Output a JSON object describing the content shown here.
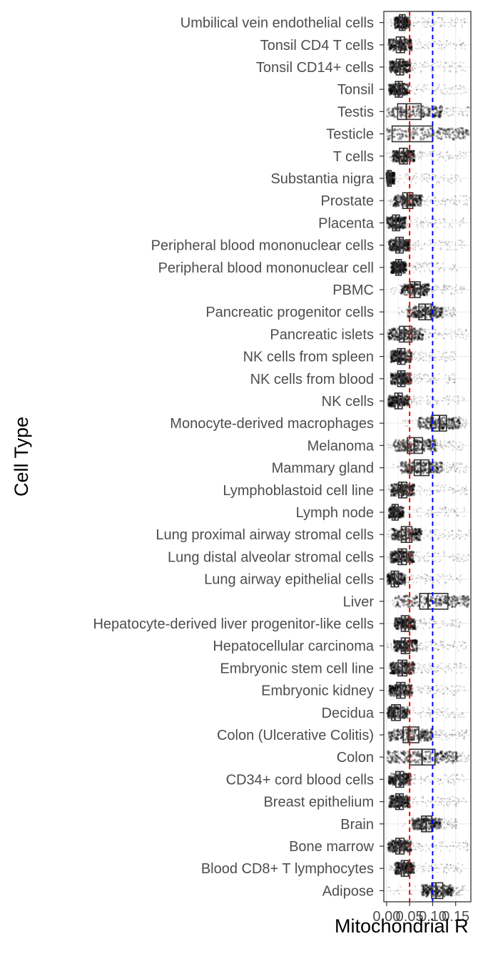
{
  "chart_data": {
    "type": "boxplot",
    "title": "",
    "xlabel": "Mitochondrial R",
    "ylabel": "Cell Type",
    "xlim": [
      -0.006,
      0.183
    ],
    "x_ticks": [
      0.0,
      0.05,
      0.1,
      0.15
    ],
    "x_tick_labels": [
      "0.00",
      "0.05",
      "0.10",
      "0.15"
    ],
    "reference_lines": [
      {
        "x": 0.05,
        "color": "#ff0000",
        "style": "dashed"
      },
      {
        "x": 0.1,
        "color": "#0000ff",
        "style": "dashed"
      }
    ],
    "grid": true,
    "categories": [
      "Umbilical vein endothelial cells",
      "Tonsil CD4 T cells",
      "Tonsil CD14+ cells",
      "Tonsil",
      "Testis",
      "Testicle",
      "T cells",
      "Substantia nigra",
      "Prostate",
      "Placenta",
      "Peripheral blood mononuclear cells",
      "Peripheral blood mononuclear cell",
      "PBMC",
      "Pancreatic progenitor cells",
      "Pancreatic islets",
      "NK cells from spleen",
      "NK cells from blood",
      "NK cells",
      "Monocyte-derived macrophages",
      "Melanoma",
      "Mammary gland",
      "Lymphoblastoid cell line",
      "Lymph node",
      "Lung proximal airway stromal cells",
      "Lung distal alveolar stromal cells",
      "Lung airway epithelial cells",
      "Liver",
      "Hepatocyte-derived liver progenitor-like cells",
      "Hepatocellular carcinoma",
      "Embryonic stem cell line",
      "Embryonic kidney",
      "Decidua",
      "Colon (Ulcerative Colitis)",
      "Colon",
      "CD34+ cord blood cells",
      "Breast epithelium",
      "Brain",
      "Bone marrow",
      "Blood CD8+ T lymphocytes",
      "Adipose"
    ],
    "boxes": [
      {
        "q1": 0.028,
        "median": 0.034,
        "q3": 0.04,
        "spread_min": 0.005,
        "spread_max": 0.175
      },
      {
        "q1": 0.021,
        "median": 0.03,
        "q3": 0.039,
        "spread_min": 0.003,
        "spread_max": 0.175
      },
      {
        "q1": 0.021,
        "median": 0.029,
        "q3": 0.037,
        "spread_min": 0.003,
        "spread_max": 0.175
      },
      {
        "q1": 0.019,
        "median": 0.026,
        "q3": 0.034,
        "spread_min": 0.003,
        "spread_max": 0.175
      },
      {
        "q1": 0.024,
        "median": 0.043,
        "q3": 0.075,
        "spread_min": 0.001,
        "spread_max": 0.18
      },
      {
        "q1": 0.012,
        "median": 0.05,
        "q3": 0.1,
        "spread_min": 0.001,
        "spread_max": 0.18
      },
      {
        "q1": 0.028,
        "median": 0.037,
        "q3": 0.045,
        "spread_min": 0.001,
        "spread_max": 0.18
      },
      {
        "q1": 0.002,
        "median": 0.005,
        "q3": 0.01,
        "spread_min": 0.0,
        "spread_max": 0.17
      },
      {
        "q1": 0.035,
        "median": 0.045,
        "q3": 0.057,
        "spread_min": 0.001,
        "spread_max": 0.18
      },
      {
        "q1": 0.013,
        "median": 0.02,
        "q3": 0.028,
        "spread_min": 0.001,
        "spread_max": 0.17
      },
      {
        "q1": 0.02,
        "median": 0.028,
        "q3": 0.036,
        "spread_min": 0.002,
        "spread_max": 0.17
      },
      {
        "q1": 0.02,
        "median": 0.026,
        "q3": 0.032,
        "spread_min": 0.01,
        "spread_max": 0.16
      },
      {
        "q1": 0.051,
        "median": 0.061,
        "q3": 0.073,
        "spread_min": 0.0,
        "spread_max": 0.17
      },
      {
        "q1": 0.07,
        "median": 0.084,
        "q3": 0.097,
        "spread_min": 0.025,
        "spread_max": 0.15
      },
      {
        "q1": 0.028,
        "median": 0.038,
        "q3": 0.055,
        "spread_min": 0.001,
        "spread_max": 0.175
      },
      {
        "q1": 0.024,
        "median": 0.031,
        "q3": 0.04,
        "spread_min": 0.005,
        "spread_max": 0.15
      },
      {
        "q1": 0.024,
        "median": 0.031,
        "q3": 0.04,
        "spread_min": 0.005,
        "spread_max": 0.15
      },
      {
        "q1": 0.018,
        "median": 0.025,
        "q3": 0.034,
        "spread_min": 0.003,
        "spread_max": 0.17
      },
      {
        "q1": 0.098,
        "median": 0.115,
        "q3": 0.13,
        "spread_min": 0.035,
        "spread_max": 0.175
      },
      {
        "q1": 0.045,
        "median": 0.06,
        "q3": 0.078,
        "spread_min": 0.003,
        "spread_max": 0.17
      },
      {
        "q1": 0.06,
        "median": 0.074,
        "q3": 0.092,
        "spread_min": 0.01,
        "spread_max": 0.175
      },
      {
        "q1": 0.026,
        "median": 0.033,
        "q3": 0.044,
        "spread_min": 0.003,
        "spread_max": 0.175
      },
      {
        "q1": 0.012,
        "median": 0.018,
        "q3": 0.025,
        "spread_min": 0.005,
        "spread_max": 0.17
      },
      {
        "q1": 0.032,
        "median": 0.042,
        "q3": 0.055,
        "spread_min": 0.003,
        "spread_max": 0.18
      },
      {
        "q1": 0.025,
        "median": 0.033,
        "q3": 0.043,
        "spread_min": 0.003,
        "spread_max": 0.18
      },
      {
        "q1": 0.01,
        "median": 0.017,
        "q3": 0.026,
        "spread_min": 0.002,
        "spread_max": 0.165
      },
      {
        "q1": 0.072,
        "median": 0.09,
        "q3": 0.133,
        "spread_min": 0.005,
        "spread_max": 0.18
      },
      {
        "q1": 0.032,
        "median": 0.04,
        "q3": 0.048,
        "spread_min": 0.015,
        "spread_max": 0.16
      },
      {
        "q1": 0.032,
        "median": 0.04,
        "q3": 0.05,
        "spread_min": 0.002,
        "spread_max": 0.175
      },
      {
        "q1": 0.025,
        "median": 0.034,
        "q3": 0.044,
        "spread_min": 0.003,
        "spread_max": 0.175
      },
      {
        "q1": 0.022,
        "median": 0.03,
        "q3": 0.04,
        "spread_min": 0.003,
        "spread_max": 0.17
      },
      {
        "q1": 0.011,
        "median": 0.018,
        "q3": 0.03,
        "spread_min": 0.002,
        "spread_max": 0.17
      },
      {
        "q1": 0.036,
        "median": 0.047,
        "q3": 0.07,
        "spread_min": 0.003,
        "spread_max": 0.175
      },
      {
        "q1": 0.05,
        "median": 0.077,
        "q3": 0.105,
        "spread_min": 0.001,
        "spread_max": 0.18
      },
      {
        "q1": 0.02,
        "median": 0.029,
        "q3": 0.037,
        "spread_min": 0.003,
        "spread_max": 0.17
      },
      {
        "q1": 0.02,
        "median": 0.028,
        "q3": 0.036,
        "spread_min": 0.001,
        "spread_max": 0.175
      },
      {
        "q1": 0.076,
        "median": 0.086,
        "q3": 0.098,
        "spread_min": 0.035,
        "spread_max": 0.155
      },
      {
        "q1": 0.02,
        "median": 0.028,
        "q3": 0.038,
        "spread_min": 0.001,
        "spread_max": 0.18
      },
      {
        "q1": 0.032,
        "median": 0.038,
        "q3": 0.047,
        "spread_min": 0.005,
        "spread_max": 0.17
      },
      {
        "q1": 0.098,
        "median": 0.107,
        "q3": 0.122,
        "spread_min": 0.0,
        "spread_max": 0.17
      }
    ],
    "point_color": "#000000",
    "box_color": "#333333",
    "panel_border_color": "#333333",
    "grid_color": "#ebebeb"
  }
}
